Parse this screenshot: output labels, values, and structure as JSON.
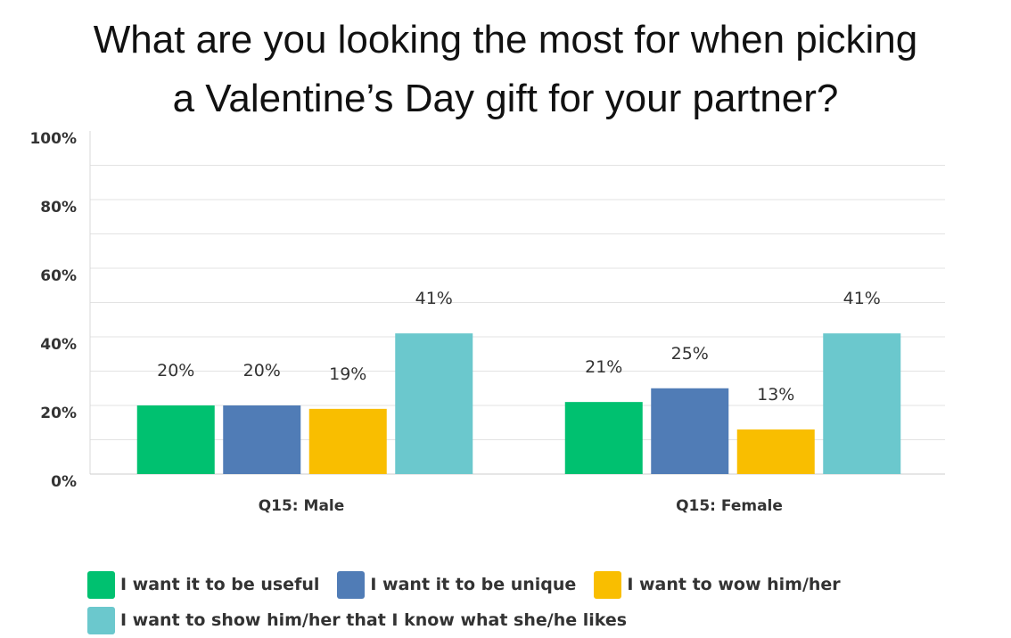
{
  "title_lines": [
    "What are you looking the most for when picking",
    "a Valentine’s Day gift for your partner?"
  ],
  "legend": [
    "I want it to be useful",
    "I want it to be unique",
    "I want to wow him/her",
    "I want to show him/her that I know what she/he likes"
  ],
  "chart_data": {
    "type": "bar",
    "title": "What are you looking the most for when picking a Valentine’s Day gift for your partner?",
    "categories": [
      "Q15: Male",
      "Q15: Female"
    ],
    "series": [
      {
        "name": "I want it to be useful",
        "values": [
          20,
          21
        ],
        "labels": [
          "20%",
          "21%"
        ],
        "color": "#00c170"
      },
      {
        "name": "I want it to be unique",
        "values": [
          20,
          25
        ],
        "labels": [
          "20%",
          "25%"
        ],
        "color": "#507cb6"
      },
      {
        "name": "I want to wow him/her",
        "values": [
          19,
          13
        ],
        "labels": [
          "19%",
          "13%"
        ],
        "color": "#f9be00"
      },
      {
        "name": "I want to show him/her that I know what she/he likes",
        "values": [
          41,
          41
        ],
        "labels": [
          "41%",
          "41%"
        ],
        "color": "#6bc8cd"
      }
    ],
    "ylim": [
      0,
      100
    ],
    "yticks": [
      "0%",
      "20%",
      "40%",
      "60%",
      "80%",
      "100%"
    ],
    "grid": true,
    "legend_position": "bottom"
  }
}
